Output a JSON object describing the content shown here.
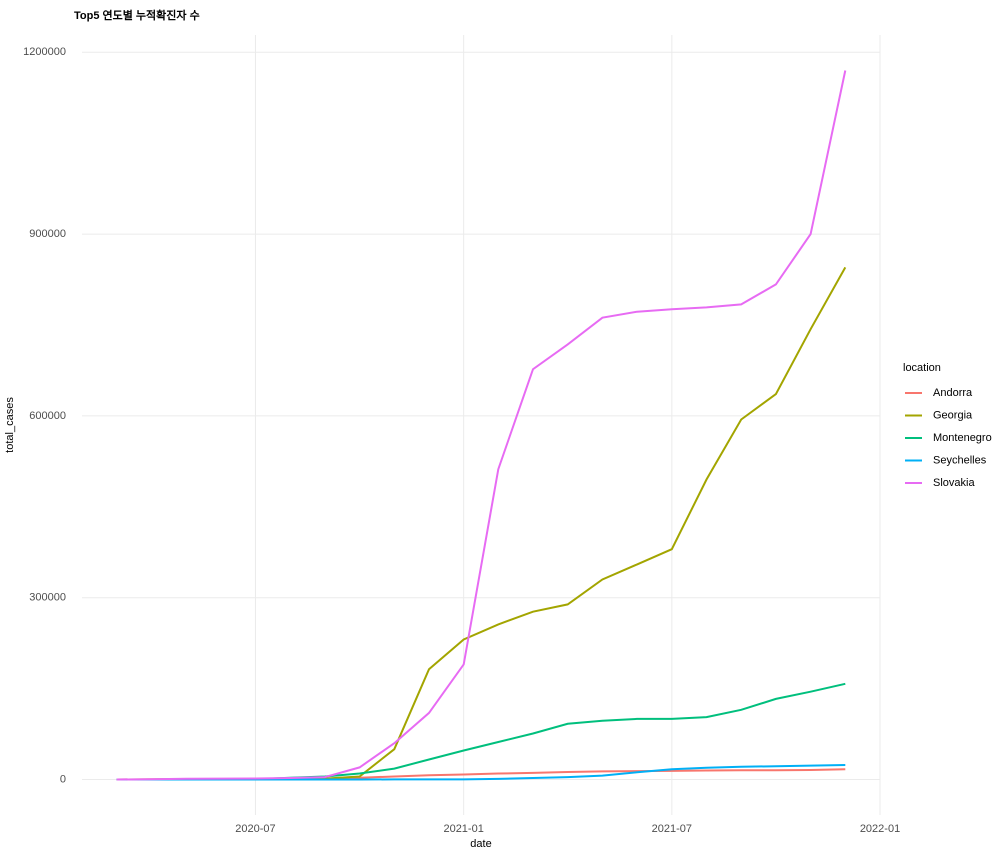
{
  "chart_data": {
    "type": "line",
    "title": "Top5 연도별 누적확진자 수",
    "x_label": "date",
    "y_label": "total_cases",
    "legend_title": "location",
    "x": [
      "2020-03",
      "2020-04",
      "2020-05",
      "2020-06",
      "2020-07",
      "2020-08",
      "2020-09",
      "2020-10",
      "2020-11",
      "2020-12",
      "2021-01",
      "2021-02",
      "2021-03",
      "2021-04",
      "2021-05",
      "2021-06",
      "2021-07",
      "2021-08",
      "2021-09",
      "2021-10",
      "2021-11",
      "2021-12"
    ],
    "series": [
      {
        "name": "Andorra",
        "color": "#F8766D",
        "values": [
          1,
          370,
          750,
          850,
          860,
          990,
          1250,
          3000,
          5000,
          7000,
          8300,
          10000,
          11000,
          12500,
          13500,
          14000,
          14300,
          15000,
          15200,
          15400,
          15700,
          17000
        ]
      },
      {
        "name": "Georgia",
        "color": "#A3A500",
        "values": [
          3,
          110,
          580,
          800,
          940,
          1200,
          1500,
          5000,
          50000,
          182000,
          231000,
          256000,
          277000,
          289000,
          330000,
          355000,
          380000,
          495000,
          594000,
          636000,
          743000,
          845000
        ]
      },
      {
        "name": "Montenegro",
        "color": "#00BF7D",
        "values": [
          0,
          100,
          320,
          320,
          500,
          3000,
          5000,
          10000,
          18000,
          33000,
          48000,
          62000,
          76000,
          92000,
          97000,
          100000,
          100000,
          103000,
          115000,
          133000,
          145000,
          158000
        ]
      },
      {
        "name": "Seychelles",
        "color": "#00B0F6",
        "values": [
          4,
          10,
          11,
          11,
          81,
          120,
          140,
          150,
          160,
          200,
          300,
          1000,
          2500,
          4000,
          6500,
          12000,
          17000,
          19500,
          21000,
          22000,
          23000,
          24000
        ]
      },
      {
        "name": "Slovakia",
        "color": "#E76BF3",
        "values": [
          3,
          400,
          1400,
          1500,
          1700,
          2500,
          4000,
          20000,
          60000,
          110000,
          190000,
          512000,
          677000,
          718000,
          762000,
          772000,
          776000,
          779000,
          784000,
          817000,
          900000,
          1170000
        ]
      }
    ],
    "xlim": [
      "2020-02",
      "2022-01"
    ],
    "xticks": [
      "2020-07",
      "2021-01",
      "2021-07",
      "2022-01"
    ],
    "ylim": [
      -58500,
      1228500
    ],
    "yticks": [
      0,
      300000,
      600000,
      900000,
      1200000
    ],
    "grid": true,
    "legend_position": "right"
  }
}
